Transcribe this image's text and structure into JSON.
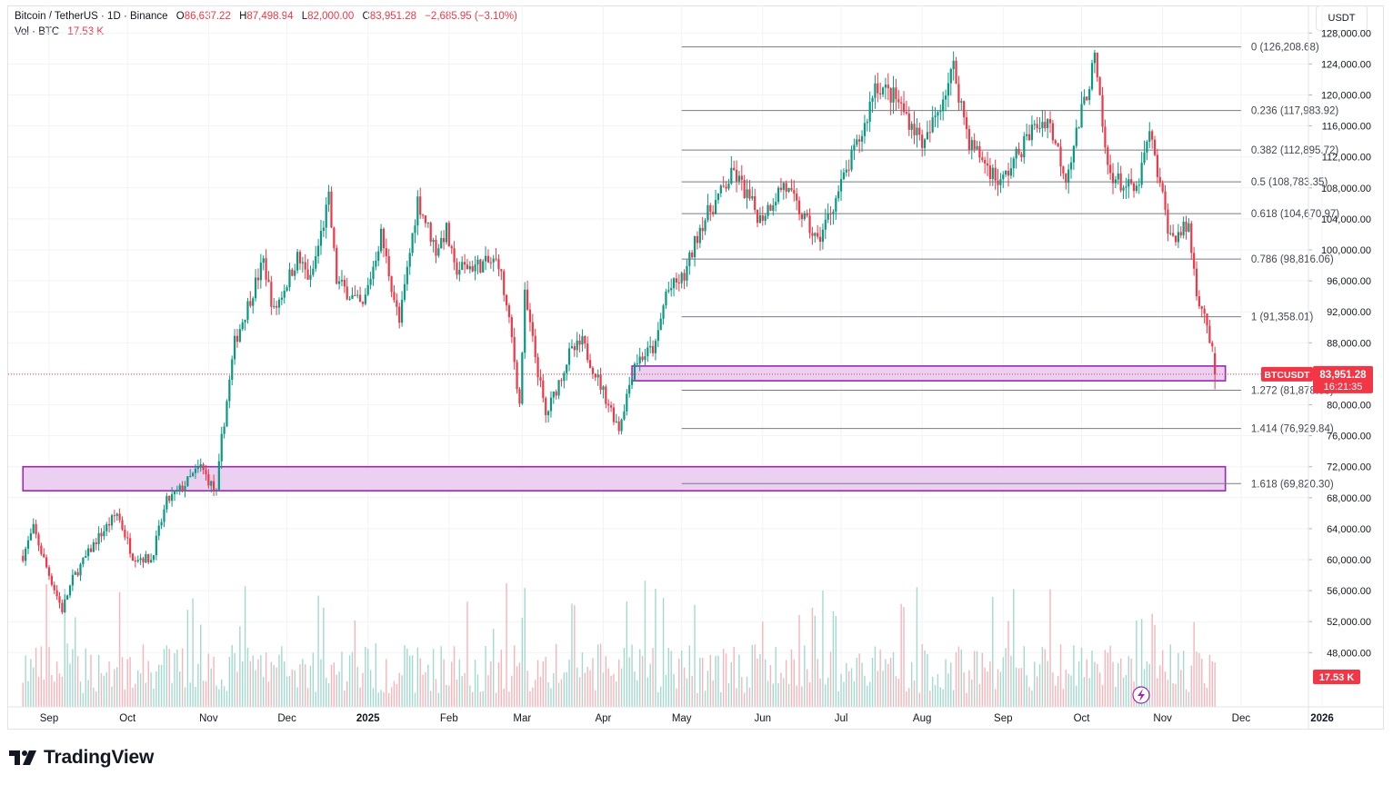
{
  "header": {
    "symbol": "Bitcoin / TetherUS · 1D · Binance",
    "o_label": "O",
    "o_value": "86,637.22",
    "h_label": "H",
    "h_value": "87,498.94",
    "l_label": "L",
    "l_value": "82,000.00",
    "c_label": "C",
    "c_value": "83,951.28",
    "change": "−2,685.95 (−3.10%)",
    "vol_label": "Vol · BTC",
    "vol_value": "17.53 K"
  },
  "currency_button": "USDT",
  "branding": "TradingView",
  "colors": {
    "up": "#089981",
    "down": "#f23645",
    "zone_fill": "#e9c8ef",
    "zone_stroke": "#9c27b0",
    "fib_line": "#787b86",
    "price_line": "#f23645"
  },
  "chart_data": {
    "type": "candlestick",
    "symbol": "BTCUSDT",
    "interval": "1D",
    "y_axis": {
      "scale": "linear",
      "min": 46000,
      "max": 132000,
      "ticks": [
        "128,000.00",
        "124,000.00",
        "120,000.00",
        "116,000.00",
        "112,000.00",
        "108,000.00",
        "104,000.00",
        "100,000.00",
        "96,000.00",
        "92,000.00",
        "88,000.00",
        "84,000.00",
        "80,000.00",
        "76,000.00",
        "72,000.00",
        "68,000.00",
        "64,000.00",
        "60,000.00",
        "56,000.00",
        "52,000.00",
        "48,000.00"
      ]
    },
    "x_axis": {
      "start": "2024-08-22",
      "end": "2026-01-12",
      "ticks": [
        {
          "label": "Sep",
          "date": "2024-09-01",
          "bold": false
        },
        {
          "label": "Oct",
          "date": "2024-10-01",
          "bold": false
        },
        {
          "label": "Nov",
          "date": "2024-11-01",
          "bold": false
        },
        {
          "label": "Dec",
          "date": "2024-12-01",
          "bold": false
        },
        {
          "label": "2025",
          "date": "2025-01-01",
          "bold": true
        },
        {
          "label": "Feb",
          "date": "2025-02-01",
          "bold": false
        },
        {
          "label": "Mar",
          "date": "2025-03-01",
          "bold": false
        },
        {
          "label": "Apr",
          "date": "2025-04-01",
          "bold": false
        },
        {
          "label": "May",
          "date": "2025-05-01",
          "bold": false
        },
        {
          "label": "Jun",
          "date": "2025-06-01",
          "bold": false
        },
        {
          "label": "Jul",
          "date": "2025-07-01",
          "bold": false
        },
        {
          "label": "Aug",
          "date": "2025-08-01",
          "bold": false
        },
        {
          "label": "Sep",
          "date": "2025-09-01",
          "bold": false
        },
        {
          "label": "Oct",
          "date": "2025-10-01",
          "bold": false
        },
        {
          "label": "Nov",
          "date": "2025-11-01",
          "bold": false
        },
        {
          "label": "Dec",
          "date": "2025-12-01",
          "bold": false
        },
        {
          "label": "2026",
          "date": "2026-01-01",
          "bold": true
        }
      ]
    },
    "price_path": [
      [
        "2024-08-22",
        60500
      ],
      [
        "2024-08-26",
        64000
      ],
      [
        "2024-08-31",
        59000
      ],
      [
        "2024-09-06",
        53500
      ],
      [
        "2024-09-10",
        57500
      ],
      [
        "2024-09-19",
        62500
      ],
      [
        "2024-09-27",
        66000
      ],
      [
        "2024-10-03",
        60500
      ],
      [
        "2024-10-10",
        60000
      ],
      [
        "2024-10-16",
        67500
      ],
      [
        "2024-10-21",
        69000
      ],
      [
        "2024-10-29",
        72000
      ],
      [
        "2024-11-04",
        68500
      ],
      [
        "2024-11-06",
        75500
      ],
      [
        "2024-11-11",
        88000
      ],
      [
        "2024-11-13",
        90000
      ],
      [
        "2024-11-22",
        98500
      ],
      [
        "2024-11-26",
        92000
      ],
      [
        "2024-12-05",
        99000
      ],
      [
        "2024-12-10",
        96000
      ],
      [
        "2024-12-17",
        106500
      ],
      [
        "2024-12-20",
        96000
      ],
      [
        "2024-12-30",
        92500
      ],
      [
        "2025-01-06",
        102000
      ],
      [
        "2025-01-13",
        90500
      ],
      [
        "2025-01-20",
        106500
      ],
      [
        "2025-01-27",
        100000
      ],
      [
        "2025-01-31",
        102500
      ],
      [
        "2025-02-03",
        97500
      ],
      [
        "2025-02-20",
        98500
      ],
      [
        "2025-02-25",
        88500
      ],
      [
        "2025-02-28",
        80000
      ],
      [
        "2025-03-02",
        94000
      ],
      [
        "2025-03-10",
        78500
      ],
      [
        "2025-03-19",
        86500
      ],
      [
        "2025-03-24",
        88000
      ],
      [
        "2025-03-31",
        82500
      ],
      [
        "2025-04-07",
        77000
      ],
      [
        "2025-04-13",
        85500
      ],
      [
        "2025-04-21",
        87500
      ],
      [
        "2025-04-25",
        94500
      ],
      [
        "2025-05-02",
        96500
      ],
      [
        "2025-05-08",
        103000
      ],
      [
        "2025-05-21",
        110000
      ],
      [
        "2025-05-31",
        104000
      ],
      [
        "2025-06-09",
        108500
      ],
      [
        "2025-06-22",
        101000
      ],
      [
        "2025-06-30",
        107500
      ],
      [
        "2025-07-10",
        116000
      ],
      [
        "2025-07-14",
        121500
      ],
      [
        "2025-07-22",
        119500
      ],
      [
        "2025-08-02",
        113500
      ],
      [
        "2025-08-13",
        123500
      ],
      [
        "2025-08-19",
        114000
      ],
      [
        "2025-08-31",
        108500
      ],
      [
        "2025-09-12",
        115500
      ],
      [
        "2025-09-18",
        117000
      ],
      [
        "2025-09-25",
        109500
      ],
      [
        "2025-10-06",
        124500
      ],
      [
        "2025-10-10",
        113000
      ],
      [
        "2025-10-11",
        110500
      ],
      [
        "2025-10-16",
        108500
      ],
      [
        "2025-10-22",
        107500
      ],
      [
        "2025-10-27",
        115000
      ],
      [
        "2025-11-04",
        101500
      ],
      [
        "2025-11-11",
        103000
      ],
      [
        "2025-11-14",
        94500
      ],
      [
        "2025-11-17",
        92000
      ],
      [
        "2025-11-20",
        86600
      ],
      [
        "2025-11-21",
        83951.28
      ]
    ],
    "last_price": {
      "symbol_label": "BTCUSDT",
      "value": "83,951.28",
      "countdown": "16:21:35",
      "y": 83951.28
    },
    "fibonacci": {
      "start_date": "2025-05-01",
      "end_date": "2025-12-01",
      "levels": [
        {
          "label": "0 (126,208.68)",
          "price": 126208.68
        },
        {
          "label": "0.236 (117,983.92)",
          "price": 117983.92
        },
        {
          "label": "0.382 (112,895.72)",
          "price": 112895.72
        },
        {
          "label": "0.5 (108,783.35)",
          "price": 108783.35
        },
        {
          "label": "0.618 (104,670.97)",
          "price": 104670.97
        },
        {
          "label": "0.786 (98,816.06)",
          "price": 98816.06
        },
        {
          "label": "1 (91,358.01)",
          "price": 91358.01
        },
        {
          "label": "1.272 (81,878.63)",
          "price": 81878.63
        },
        {
          "label": "1.414 (76,929.84)",
          "price": 76929.84
        },
        {
          "label": "1.618 (69,820.30)",
          "price": 69820.3
        }
      ]
    },
    "zones": [
      {
        "start": "2025-04-12",
        "end": "2025-11-25",
        "top": 85000,
        "bottom": 83100
      },
      {
        "start": "2024-08-22",
        "end": "2025-11-25",
        "top": 72000,
        "bottom": 68900
      }
    ],
    "volume": {
      "label": "17.53 K",
      "unit": "BTC"
    }
  }
}
